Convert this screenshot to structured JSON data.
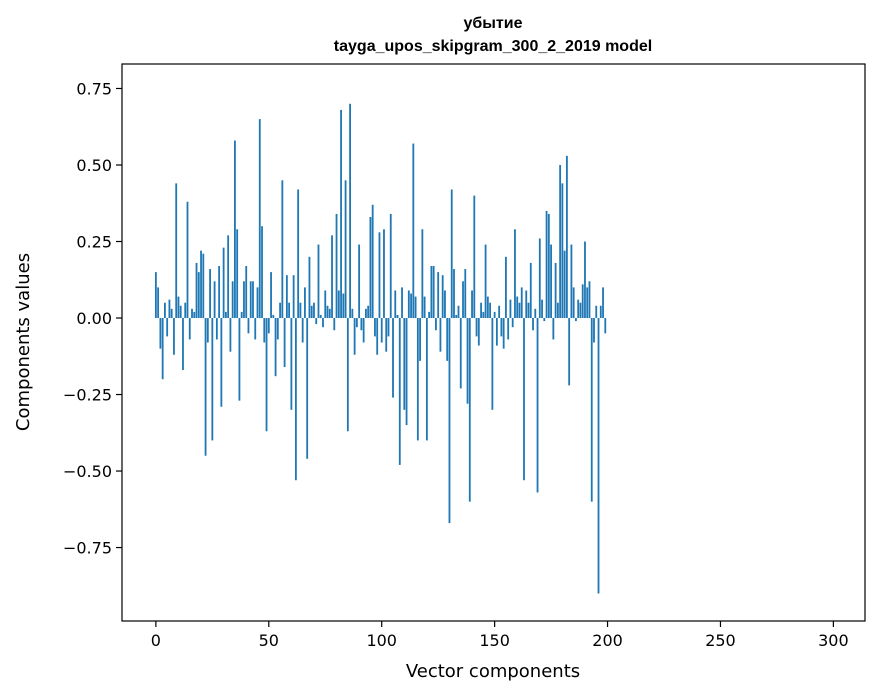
{
  "chart_data": {
    "type": "bar",
    "title": "убытие",
    "subtitle": "tayga_upos_skipgram_300_2_2019 model",
    "xlabel": "Vector components",
    "ylabel": "Components values",
    "xlim": [
      -15,
      314
    ],
    "ylim": [
      -0.99,
      0.83
    ],
    "xticks": [
      0,
      50,
      100,
      150,
      200,
      250,
      300
    ],
    "xtick_labels": [
      "0",
      "50",
      "100",
      "150",
      "200",
      "250",
      "300"
    ],
    "yticks": [
      0.75,
      0.5,
      0.25,
      0.0,
      -0.25,
      -0.5,
      -0.75
    ],
    "ytick_labels": [
      "0.75",
      "0.50",
      "0.25",
      "0.00",
      "−0.25",
      "−0.50",
      "−0.75"
    ],
    "bar_color": "#1f77b4",
    "grid": false,
    "legend": "none",
    "values": [
      0.15,
      0.1,
      -0.1,
      -0.2,
      0.05,
      -0.06,
      0.06,
      0.03,
      -0.12,
      0.44,
      0.07,
      0.04,
      -0.17,
      0.05,
      0.38,
      -0.07,
      0.03,
      0.02,
      0.18,
      0.15,
      0.22,
      0.21,
      -0.45,
      -0.08,
      0.16,
      -0.4,
      0.12,
      -0.07,
      0.17,
      -0.29,
      0.23,
      0.02,
      0.27,
      -0.11,
      0.12,
      0.58,
      0.29,
      -0.27,
      0.02,
      0.12,
      0.17,
      -0.05,
      0.12,
      0.12,
      -0.07,
      0.1,
      0.65,
      0.3,
      -0.08,
      -0.37,
      -0.05,
      0.15,
      0.01,
      -0.19,
      -0.07,
      0.05,
      0.45,
      -0.16,
      0.14,
      0.05,
      -0.3,
      0.14,
      -0.53,
      0.42,
      0.05,
      -0.08,
      0.1,
      -0.46,
      0.2,
      0.04,
      0.05,
      -0.02,
      0.24,
      0.01,
      -0.03,
      0.09,
      0.04,
      0.03,
      0.27,
      -0.04,
      0.34,
      0.09,
      0.68,
      0.08,
      0.45,
      -0.37,
      0.7,
      0.03,
      -0.12,
      -0.03,
      0.24,
      -0.04,
      -0.08,
      0.03,
      0.04,
      0.33,
      0.37,
      -0.06,
      -0.12,
      0.28,
      -0.08,
      0.29,
      -0.11,
      -0.06,
      0.34,
      -0.26,
      0.09,
      0.01,
      -0.48,
      0.1,
      -0.3,
      -0.35,
      0.09,
      0.08,
      0.57,
      0.07,
      -0.4,
      -0.14,
      0.29,
      0.07,
      -0.4,
      0.02,
      0.17,
      0.17,
      -0.04,
      0.15,
      -0.11,
      0.14,
      0.09,
      -0.14,
      -0.67,
      0.42,
      0.16,
      0.01,
      0.04,
      -0.23,
      0.12,
      0.16,
      -0.28,
      -0.6,
      0.09,
      0.4,
      -0.06,
      -0.09,
      0.05,
      0.02,
      0.24,
      0.07,
      0.05,
      -0.3,
      0.02,
      -0.09,
      0.04,
      -0.06,
      -0.1,
      0.2,
      -0.07,
      0.06,
      -0.03,
      0.29,
      0.07,
      0.05,
      0.1,
      -0.53,
      0.09,
      0.05,
      0.18,
      -0.04,
      0.03,
      -0.57,
      0.26,
      0.06,
      -0.01,
      0.35,
      0.34,
      0.24,
      -0.07,
      0.18,
      0.05,
      0.5,
      0.44,
      0.22,
      0.53,
      -0.22,
      0.24,
      0.1,
      -0.01,
      0.06,
      0.05,
      0.11,
      0.25,
      0.1,
      0.12,
      -0.6,
      -0.08,
      0.04,
      -0.9,
      0.04,
      0.1,
      -0.05
    ]
  }
}
